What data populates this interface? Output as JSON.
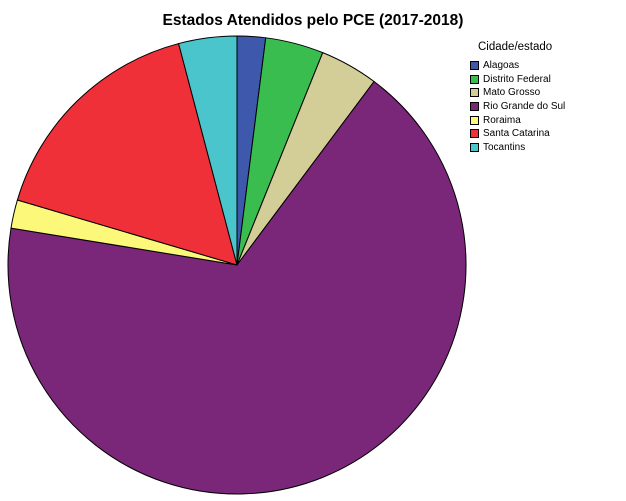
{
  "chart_data": {
    "type": "pie",
    "title": "Estados Atendidos pelo PCE (2017-2018)",
    "legend_title": "Cidade/estado",
    "legend_position": "right",
    "slices": [
      {
        "label": "Alagoas",
        "value": 2.0,
        "color": "#3e58ac"
      },
      {
        "label": "Distrito Federal",
        "value": 4.1,
        "color": "#39bd4f"
      },
      {
        "label": "Mato Grosso",
        "value": 4.1,
        "color": "#d3ce97"
      },
      {
        "label": "Rio Grande do Sul",
        "value": 67.3,
        "color": "#7b2779"
      },
      {
        "label": "Roraima",
        "value": 2.0,
        "color": "#fbf87a"
      },
      {
        "label": "Santa Catarina",
        "value": 16.3,
        "color": "#f03039"
      },
      {
        "label": "Tocantins",
        "value": 4.1,
        "color": "#4ac5cc"
      }
    ]
  }
}
